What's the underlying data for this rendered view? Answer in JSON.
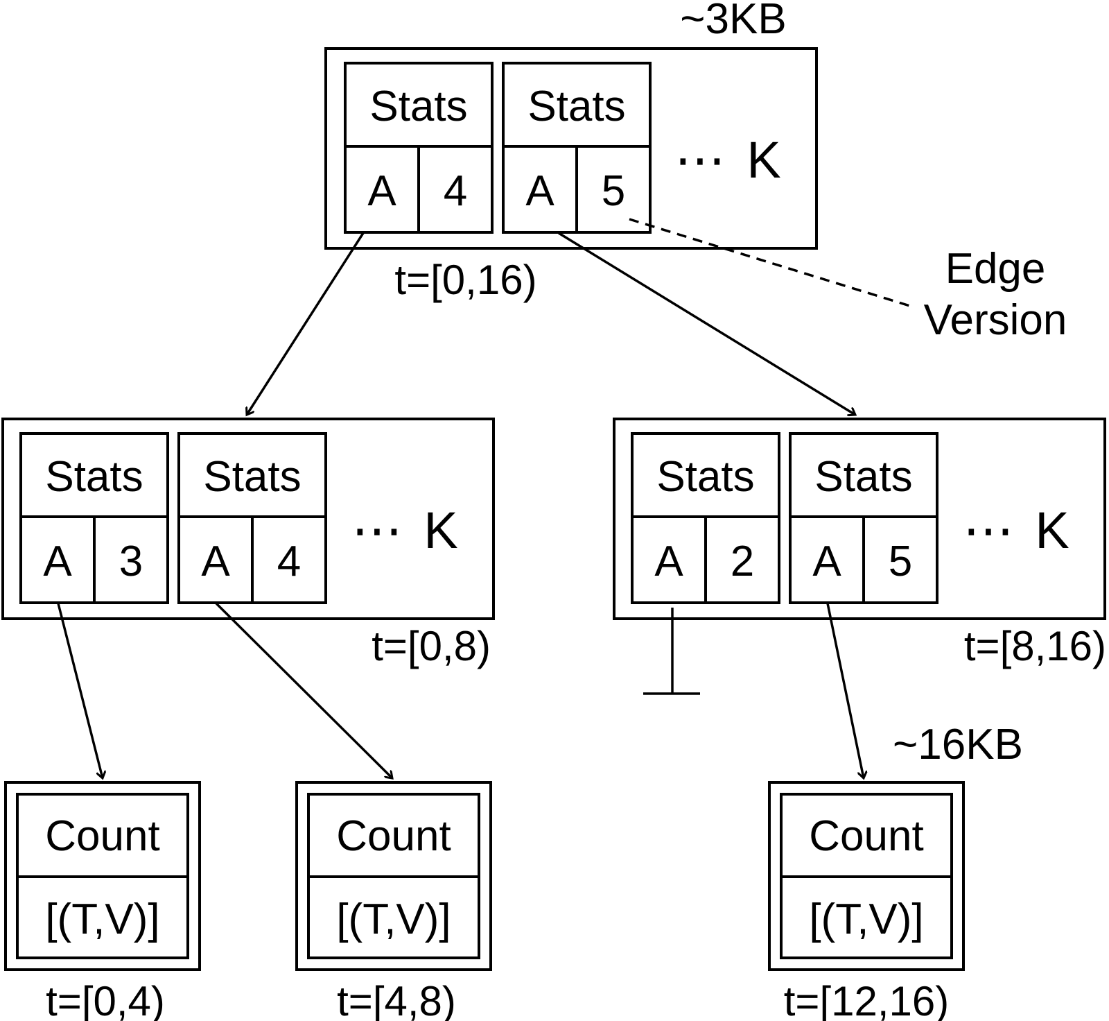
{
  "root": {
    "size_label": "~3KB",
    "stats": [
      {
        "title": "Stats",
        "key": "A",
        "value": "4"
      },
      {
        "title": "Stats",
        "key": "A",
        "value": "5"
      }
    ],
    "ellipsis": "⋯",
    "k_label": "K",
    "time_range": "t=[0,16)"
  },
  "edge_version_label": {
    "line1": "Edge",
    "line2": "Version"
  },
  "mid_left": {
    "stats": [
      {
        "title": "Stats",
        "key": "A",
        "value": "3"
      },
      {
        "title": "Stats",
        "key": "A",
        "value": "4"
      }
    ],
    "ellipsis": "⋯",
    "k_label": "K",
    "time_range": "t=[0,8)"
  },
  "mid_right": {
    "stats": [
      {
        "title": "Stats",
        "key": "A",
        "value": "2"
      },
      {
        "title": "Stats",
        "key": "A",
        "value": "5"
      }
    ],
    "ellipsis": "⋯",
    "k_label": "K",
    "time_range": "t=[8,16)"
  },
  "leaf_size_label": "~16KB",
  "leaves": [
    {
      "title": "Count",
      "content": "[(T,V)]",
      "time_range": "t=[0,4)"
    },
    {
      "title": "Count",
      "content": "[(T,V)]",
      "time_range": "t=[4,8)"
    },
    {
      "title": "Count",
      "content": "[(T,V)]",
      "time_range": "t=[12,16)"
    }
  ]
}
